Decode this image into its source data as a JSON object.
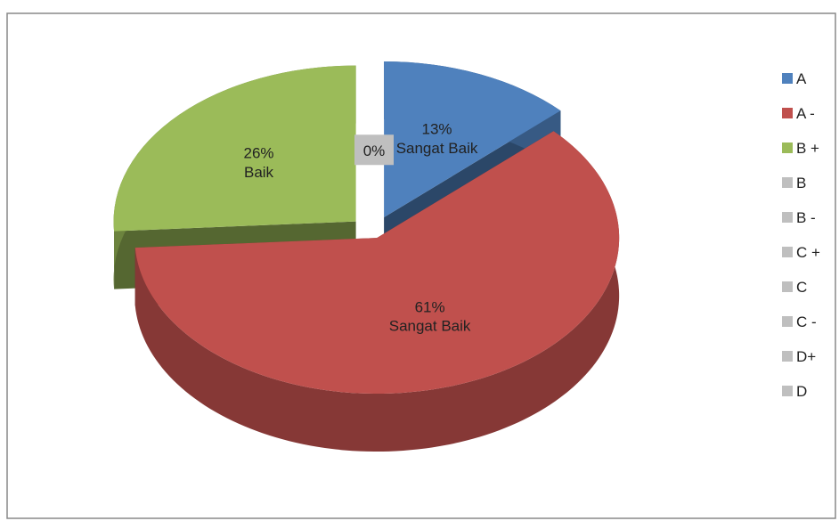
{
  "chart_data": {
    "type": "pie",
    "categories": [
      "A",
      "A -",
      "B +",
      "B",
      "B -",
      "C +",
      "C",
      "C -",
      "D+",
      "D"
    ],
    "values": [
      13,
      61,
      26,
      0,
      0,
      0,
      0,
      0,
      0,
      0
    ],
    "value_labels": [
      "13%",
      "61%",
      "26%",
      "0%",
      null,
      null,
      null,
      null,
      null,
      null
    ],
    "label_texts": [
      "Sangat Baik",
      "Sangat Baik",
      "Baik",
      null,
      null,
      null,
      null,
      null,
      null,
      null
    ],
    "colors": [
      "#4f81bd",
      "#c0504d",
      "#9bbb59",
      "#bfbfbf",
      "#bfbfbf",
      "#bfbfbf",
      "#bfbfbf",
      "#bfbfbf",
      "#bfbfbf",
      "#bfbfbf"
    ],
    "legend": "right"
  }
}
